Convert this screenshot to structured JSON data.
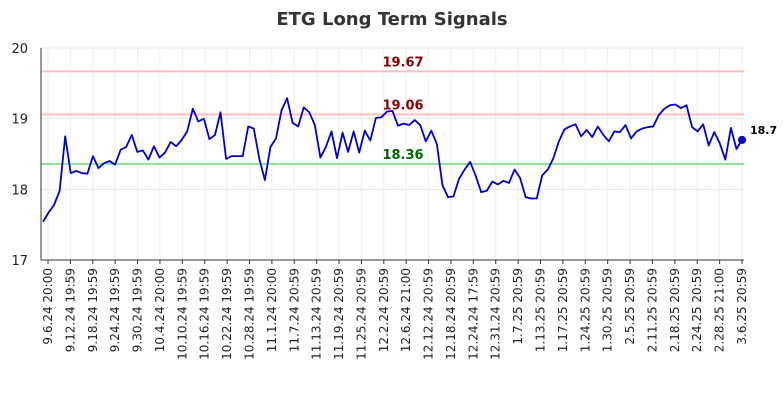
{
  "chart_data": {
    "type": "line",
    "title": "ETG Long Term Signals",
    "xlabel": "",
    "ylabel": "",
    "ylim": [
      17,
      20
    ],
    "y_ticks": [
      "17",
      "18",
      "19",
      "20"
    ],
    "grid": true,
    "x_tick_labels": [
      "9.6.24 20:00",
      "9.12.24 19:59",
      "9.18.24 19:59",
      "9.24.24 19:59",
      "9.30.24 19:59",
      "10.4.24 20:00",
      "10.10.24 19:59",
      "10.16.24 19:59",
      "10.22.24 19:59",
      "10.28.24 19:59",
      "11.1.24 20:00",
      "11.7.24 20:59",
      "11.13.24 20:59",
      "11.19.24 20:59",
      "11.25.24 20:59",
      "12.2.24 20:59",
      "12.6.24 21:00",
      "12.12.24 20:59",
      "12.18.24 20:59",
      "12.24.24 17:59",
      "12.31.24 20:59",
      "1.7.25 20:59",
      "1.13.25 20:59",
      "1.17.25 20:59",
      "1.24.25 20:59",
      "1.30.25 20:59",
      "2.5.25 20:59",
      "2.11.25 20:59",
      "2.18.25 20:59",
      "2.24.25 20:59",
      "2.28.25 21:00",
      "3.6.25 20:59"
    ],
    "reference_lines": [
      {
        "value": 19.67,
        "label": "19.67",
        "color": "#ffbfbf",
        "label_color": "#8b0000"
      },
      {
        "value": 19.06,
        "label": "19.06",
        "color": "#ffbfbf",
        "label_color": "#8b0000"
      },
      {
        "value": 18.36,
        "label": "18.36",
        "color": "#90e090",
        "label_color": "#006400"
      }
    ],
    "last_value_label": "18.7",
    "series": [
      {
        "color": "#0000cc",
        "values": [
          17.54,
          17.67,
          17.78,
          17.98,
          18.75,
          18.23,
          18.26,
          18.23,
          18.22,
          18.47,
          18.3,
          18.37,
          18.4,
          18.35,
          18.56,
          18.6,
          18.77,
          18.53,
          18.55,
          18.42,
          18.61,
          18.45,
          18.52,
          18.67,
          18.61,
          18.7,
          18.82,
          19.14,
          18.96,
          19.0,
          18.71,
          18.77,
          19.09,
          18.43,
          18.47,
          18.47,
          18.47,
          18.89,
          18.86,
          18.43,
          18.13,
          18.6,
          18.72,
          19.12,
          19.29,
          18.94,
          18.89,
          19.16,
          19.09,
          18.91,
          18.45,
          18.6,
          18.82,
          18.44,
          18.8,
          18.53,
          18.82,
          18.52,
          18.83,
          18.69,
          19.01,
          19.02,
          19.1,
          19.11,
          18.9,
          18.93,
          18.91,
          18.98,
          18.91,
          18.68,
          18.83,
          18.64,
          18.06,
          17.89,
          17.9,
          18.15,
          18.28,
          18.39,
          18.19,
          17.96,
          17.98,
          18.11,
          18.07,
          18.12,
          18.09,
          18.28,
          18.16,
          17.89,
          17.87,
          17.87,
          18.2,
          18.28,
          18.44,
          18.68,
          18.85,
          18.89,
          18.92,
          18.75,
          18.84,
          18.74,
          18.89,
          18.77,
          18.68,
          18.82,
          18.81,
          18.91,
          18.72,
          18.82,
          18.86,
          18.88,
          18.89,
          19.05,
          19.14,
          19.19,
          19.2,
          19.15,
          19.19,
          18.88,
          18.82,
          18.92,
          18.62,
          18.81,
          18.65,
          18.42,
          18.87,
          18.57,
          18.7
        ]
      }
    ]
  }
}
